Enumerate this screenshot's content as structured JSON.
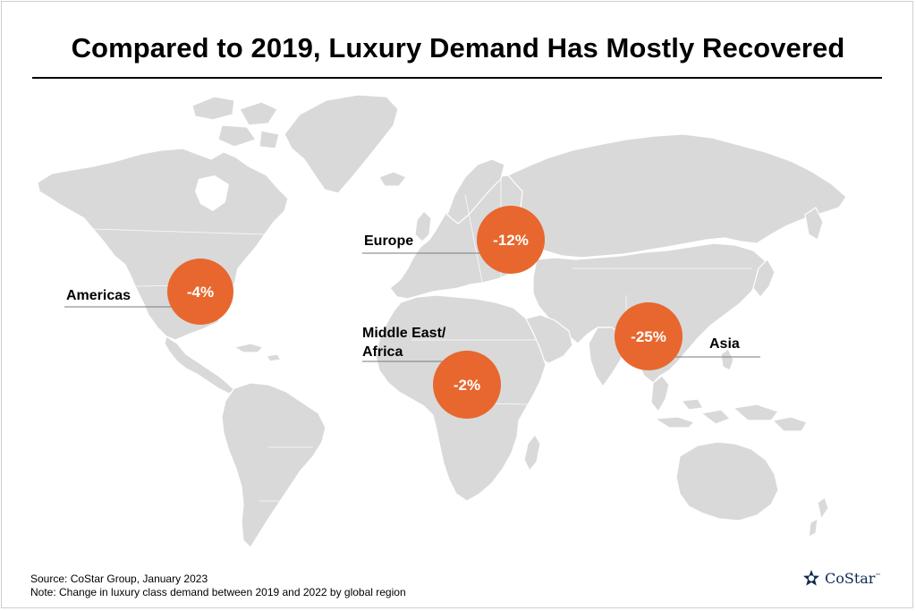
{
  "title": "Compared to 2019, Luxury Demand Has Mostly Recovered",
  "regions": [
    {
      "id": "americas",
      "label": "Americas",
      "value": "-4%"
    },
    {
      "id": "europe",
      "label": "Europe",
      "value": "-12%"
    },
    {
      "id": "mea",
      "label_line1": "Middle East/",
      "label_line2": "Africa",
      "value": "-2%"
    },
    {
      "id": "asia",
      "label": "Asia",
      "value": "-25%"
    }
  ],
  "source": "Source: CoStar Group, January 2023",
  "note": "Note: Change in luxury class demand between 2019 and 2022 by global region",
  "logo": {
    "name": "CoStar",
    "tm": "™"
  },
  "colors": {
    "bubble": "#e8672e",
    "land": "#d9d9d9",
    "logo": "#0e2a52"
  }
}
